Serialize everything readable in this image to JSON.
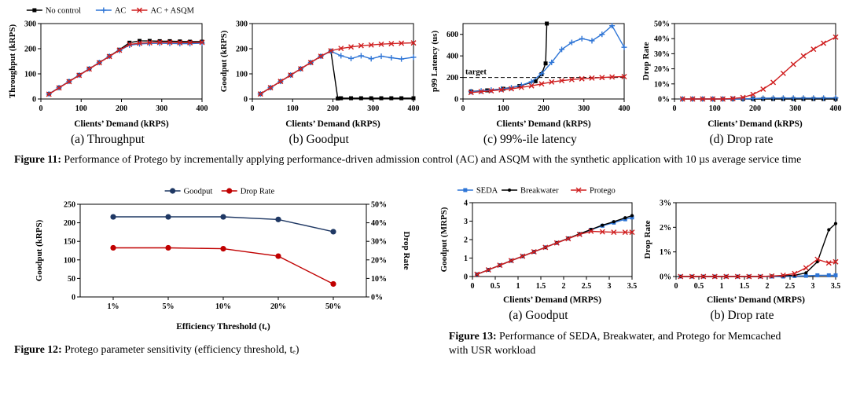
{
  "figure11": {
    "caption_label": "Figure 11:",
    "caption_text": "Performance of Protego by incrementally applying performance-driven admission control (AC) and ASQM with the synthetic application with 10 µs average service time",
    "subcaptions": [
      "(a) Throughput",
      "(b) Goodput",
      "(c) 99%-ile latency",
      "(d) Drop rate"
    ]
  },
  "figure12": {
    "caption_label": "Figure 12:",
    "caption_text": "Protego parameter sensitivity (efficiency threshold, tₑ)"
  },
  "figure13": {
    "caption_label": "Figure 13:",
    "caption_text": "Performance of SEDA, Breakwater, and Protego for Memcached with USR workload",
    "subcaptions": [
      "(a) Goodput",
      "(b) Drop rate"
    ]
  },
  "colors": {
    "black": "#000000",
    "blue": "#2E75D6",
    "red": "#D02021",
    "navy": "#1F3864",
    "dark_red": "#C00000"
  },
  "chart_data": [
    {
      "id": "fig11a",
      "type": "line",
      "xlabel": "Clients’ Demand (kRPS)",
      "ylabel": "Throughput (kRPS)",
      "xlim": [
        0,
        400
      ],
      "ylim": [
        0,
        300
      ],
      "xticks": [
        0,
        100,
        200,
        300,
        400
      ],
      "yticks": [
        0,
        100,
        200,
        300
      ],
      "show_legend": true,
      "series": [
        {
          "name": "No control",
          "color": "#000000",
          "marker": "square",
          "x": [
            20,
            45,
            70,
            95,
            120,
            145,
            170,
            195,
            220,
            245,
            270,
            295,
            320,
            345,
            370,
            400
          ],
          "y": [
            20,
            45,
            70,
            95,
            120,
            145,
            170,
            196,
            224,
            231,
            231,
            230,
            230,
            229,
            228,
            228
          ]
        },
        {
          "name": "AC",
          "color": "#2E75D6",
          "marker": "plus",
          "x": [
            20,
            45,
            70,
            95,
            120,
            145,
            170,
            195,
            220,
            245,
            270,
            295,
            320,
            345,
            370,
            400
          ],
          "y": [
            20,
            45,
            70,
            95,
            120,
            145,
            170,
            193,
            214,
            219,
            221,
            222,
            221,
            220,
            220,
            222
          ]
        },
        {
          "name": "AC + ASQM",
          "color": "#D02021",
          "marker": "x",
          "x": [
            20,
            45,
            70,
            95,
            120,
            145,
            170,
            195,
            220,
            245,
            270,
            295,
            320,
            345,
            370,
            400
          ],
          "y": [
            19,
            44,
            69,
            94,
            119,
            144,
            169,
            194,
            217,
            222,
            224,
            225,
            225,
            224,
            224,
            225
          ]
        }
      ]
    },
    {
      "id": "fig11b",
      "type": "line",
      "xlabel": "Clients’ Demand (kRPS)",
      "ylabel": "Goodput (kRPS)",
      "xlim": [
        0,
        400
      ],
      "ylim": [
        0,
        300
      ],
      "xticks": [
        0,
        100,
        200,
        300,
        400
      ],
      "yticks": [
        0,
        100,
        200,
        300
      ],
      "show_legend": false,
      "series": [
        {
          "name": "No control",
          "color": "#000000",
          "marker": "square",
          "x": [
            20,
            45,
            70,
            95,
            120,
            145,
            170,
            195,
            212,
            220,
            245,
            270,
            295,
            320,
            345,
            370,
            400
          ],
          "y": [
            20,
            45,
            70,
            95,
            120,
            145,
            170,
            191,
            2,
            3,
            3,
            3,
            3,
            3,
            3,
            3,
            3
          ]
        },
        {
          "name": "AC",
          "color": "#2E75D6",
          "marker": "plus",
          "x": [
            20,
            45,
            70,
            95,
            120,
            145,
            170,
            195,
            220,
            245,
            270,
            295,
            320,
            345,
            370,
            400
          ],
          "y": [
            20,
            45,
            70,
            95,
            120,
            145,
            170,
            190,
            172,
            161,
            172,
            160,
            170,
            164,
            159,
            166
          ]
        },
        {
          "name": "AC + ASQM",
          "color": "#D02021",
          "marker": "x",
          "x": [
            20,
            45,
            70,
            95,
            120,
            145,
            170,
            195,
            220,
            245,
            270,
            295,
            320,
            345,
            370,
            400
          ],
          "y": [
            20,
            45,
            70,
            95,
            120,
            145,
            170,
            192,
            201,
            207,
            212,
            215,
            218,
            220,
            222,
            223
          ]
        }
      ]
    },
    {
      "id": "fig11c",
      "type": "line",
      "xlabel": "Clients’ Demand (kRPS)",
      "ylabel": "p99 Latency (us)",
      "xlim": [
        0,
        400
      ],
      "ylim": [
        0,
        700
      ],
      "xticks": [
        0,
        100,
        200,
        300,
        400
      ],
      "yticks": [
        0,
        200,
        400,
        600
      ],
      "show_legend": false,
      "annotations": [
        {
          "type": "hline",
          "y": 200,
          "label": "target"
        }
      ],
      "series": [
        {
          "name": "No control",
          "color": "#000000",
          "marker": "square",
          "x": [
            20,
            60,
            100,
            140,
            180,
            195,
            205,
            208
          ],
          "y": [
            70,
            80,
            95,
            120,
            165,
            230,
            330,
            700
          ]
        },
        {
          "name": "AC",
          "color": "#2E75D6",
          "marker": "plus",
          "x": [
            20,
            45,
            70,
            95,
            120,
            145,
            170,
            195,
            220,
            245,
            270,
            295,
            320,
            345,
            370,
            400
          ],
          "y": [
            68,
            75,
            83,
            92,
            105,
            128,
            160,
            235,
            340,
            460,
            525,
            560,
            540,
            600,
            680,
            480
          ]
        },
        {
          "name": "AC + ASQM",
          "color": "#D02021",
          "marker": "x",
          "x": [
            20,
            45,
            70,
            95,
            120,
            145,
            170,
            195,
            220,
            245,
            270,
            295,
            320,
            345,
            370,
            400
          ],
          "y": [
            60,
            68,
            76,
            85,
            95,
            108,
            122,
            140,
            158,
            170,
            180,
            188,
            194,
            199,
            204,
            208
          ]
        }
      ]
    },
    {
      "id": "fig11d",
      "type": "line",
      "xlabel": "Clients’ Demand (kRPS)",
      "ylabel": "Drop Rate",
      "xlim": [
        0,
        400
      ],
      "ylim": [
        0,
        50
      ],
      "xticks": [
        0,
        100,
        200,
        300,
        400
      ],
      "yticks": [
        0,
        10,
        20,
        30,
        40,
        50
      ],
      "ytick_labels": [
        "0%",
        "10%",
        "20%",
        "30%",
        "40%",
        "50%"
      ],
      "show_legend": false,
      "series": [
        {
          "name": "No control",
          "color": "#000000",
          "marker": "square",
          "x": [
            20,
            45,
            70,
            95,
            120,
            145,
            170,
            195,
            220,
            245,
            270,
            295,
            320,
            345,
            370,
            400
          ],
          "y": [
            0,
            0,
            0,
            0,
            0,
            0,
            0,
            0,
            0,
            0,
            0,
            0,
            0,
            0,
            0,
            0
          ]
        },
        {
          "name": "AC",
          "color": "#2E75D6",
          "marker": "plus",
          "x": [
            20,
            45,
            70,
            95,
            120,
            145,
            170,
            195,
            220,
            245,
            270,
            295,
            320,
            345,
            370,
            400
          ],
          "y": [
            0,
            0,
            0,
            0,
            0,
            0,
            0,
            0.3,
            0.5,
            0.6,
            0.6,
            0.6,
            0.6,
            0.6,
            0.6,
            0.7
          ]
        },
        {
          "name": "AC + ASQM",
          "color": "#D02021",
          "marker": "x",
          "x": [
            20,
            45,
            70,
            95,
            120,
            145,
            170,
            195,
            220,
            245,
            270,
            295,
            320,
            345,
            370,
            400
          ],
          "y": [
            0,
            0,
            0,
            0,
            0,
            0.3,
            1,
            3,
            6.5,
            11,
            17,
            23,
            28.5,
            33,
            37,
            41
          ]
        }
      ]
    },
    {
      "id": "fig12",
      "type": "line",
      "xlabel": "Efficiency Threshold (tₑ)",
      "ylabel": "Goodput (kRPS)",
      "ylabel2": "Drop Rate",
      "x_categories": [
        "1%",
        "5%",
        "10%",
        "20%",
        "50%"
      ],
      "ylim": [
        0,
        250
      ],
      "yticks": [
        0,
        50,
        100,
        150,
        200,
        250
      ],
      "ylim2": [
        0,
        50
      ],
      "yticks2": [
        0,
        10,
        20,
        30,
        40,
        50
      ],
      "ytick_labels2": [
        "0%",
        "10%",
        "20%",
        "30%",
        "40%",
        "50%"
      ],
      "show_legend": true,
      "series": [
        {
          "name": "Goodput",
          "color": "#1F3864",
          "marker": "circle",
          "axis": "left",
          "y": [
            216,
            216,
            216,
            209,
            176
          ]
        },
        {
          "name": "Drop Rate",
          "color": "#C00000",
          "marker": "circle",
          "axis": "right",
          "y": [
            26.5,
            26.5,
            26,
            22,
            7
          ]
        }
      ]
    },
    {
      "id": "fig13a",
      "type": "line",
      "xlabel": "Clients’ Demand (MRPS)",
      "ylabel": "Goodput (MRPS)",
      "xlim": [
        0,
        3.5
      ],
      "ylim": [
        0,
        4
      ],
      "xticks": [
        0,
        0.5,
        1,
        1.5,
        2,
        2.5,
        3,
        3.5
      ],
      "xtick_labels": [
        "0",
        "0.5",
        "1",
        "1.5",
        "2",
        "2.5",
        "3",
        "3.5"
      ],
      "yticks": [
        0,
        1,
        2,
        3,
        4
      ],
      "show_legend": true,
      "series": [
        {
          "name": "SEDA",
          "color": "#2E75D6",
          "marker": "square",
          "x": [
            0.1,
            0.35,
            0.6,
            0.85,
            1.1,
            1.35,
            1.6,
            1.85,
            2.1,
            2.35,
            2.6,
            2.85,
            3.1,
            3.35,
            3.5
          ],
          "y": [
            0.12,
            0.36,
            0.61,
            0.86,
            1.1,
            1.34,
            1.58,
            1.82,
            2.06,
            2.3,
            2.53,
            2.75,
            2.92,
            3.1,
            3.2
          ]
        },
        {
          "name": "Breakwater",
          "color": "#000000",
          "marker": "dot",
          "x": [
            0.1,
            0.35,
            0.6,
            0.85,
            1.1,
            1.35,
            1.6,
            1.85,
            2.1,
            2.35,
            2.6,
            2.85,
            3.1,
            3.35,
            3.5
          ],
          "y": [
            0.12,
            0.36,
            0.61,
            0.86,
            1.1,
            1.34,
            1.58,
            1.83,
            2.07,
            2.31,
            2.55,
            2.78,
            2.97,
            3.18,
            3.3
          ]
        },
        {
          "name": "Protego",
          "color": "#D02021",
          "marker": "x",
          "x": [
            0.1,
            0.35,
            0.6,
            0.85,
            1.1,
            1.35,
            1.6,
            1.85,
            2.1,
            2.35,
            2.6,
            2.85,
            3.1,
            3.35,
            3.5
          ],
          "y": [
            0.12,
            0.36,
            0.61,
            0.86,
            1.1,
            1.34,
            1.58,
            1.82,
            2.05,
            2.28,
            2.45,
            2.42,
            2.4,
            2.4,
            2.4
          ]
        }
      ]
    },
    {
      "id": "fig13b",
      "type": "line",
      "xlabel": "Clients’ Demand (MRPS)",
      "ylabel": "Drop Rate",
      "xlim": [
        0,
        3.5
      ],
      "ylim": [
        0,
        3
      ],
      "xticks": [
        0,
        0.5,
        1,
        1.5,
        2,
        2.5,
        3,
        3.5
      ],
      "xtick_labels": [
        "0",
        "0.5",
        "1",
        "1.5",
        "2",
        "2.5",
        "3",
        "3.5"
      ],
      "yticks": [
        0,
        1,
        2,
        3
      ],
      "ytick_labels": [
        "0%",
        "1%",
        "2%",
        "3%"
      ],
      "show_legend": false,
      "series": [
        {
          "name": "SEDA",
          "color": "#2E75D6",
          "marker": "square",
          "x": [
            0.1,
            0.35,
            0.6,
            0.85,
            1.1,
            1.35,
            1.6,
            1.85,
            2.1,
            2.35,
            2.6,
            2.85,
            3.1,
            3.35,
            3.5
          ],
          "y": [
            0,
            0,
            0,
            0,
            0,
            0,
            0,
            0,
            0,
            0,
            0.02,
            0.03,
            0.05,
            0.05,
            0.05
          ]
        },
        {
          "name": "Breakwater",
          "color": "#000000",
          "marker": "dot",
          "x": [
            0.1,
            0.35,
            0.6,
            0.85,
            1.1,
            1.35,
            1.6,
            1.85,
            2.1,
            2.35,
            2.6,
            2.85,
            3.1,
            3.35,
            3.5
          ],
          "y": [
            0,
            0,
            0,
            0,
            0,
            0,
            0,
            0,
            0.02,
            0.03,
            0.05,
            0.15,
            0.6,
            1.9,
            2.15
          ]
        },
        {
          "name": "Protego",
          "color": "#D02021",
          "marker": "x",
          "x": [
            0.1,
            0.35,
            0.6,
            0.85,
            1.1,
            1.35,
            1.6,
            1.85,
            2.1,
            2.35,
            2.6,
            2.85,
            3.1,
            3.35,
            3.5
          ],
          "y": [
            0,
            0,
            0,
            0,
            0,
            0,
            0,
            0,
            0.02,
            0.05,
            0.12,
            0.35,
            0.7,
            0.55,
            0.6
          ]
        }
      ]
    }
  ]
}
